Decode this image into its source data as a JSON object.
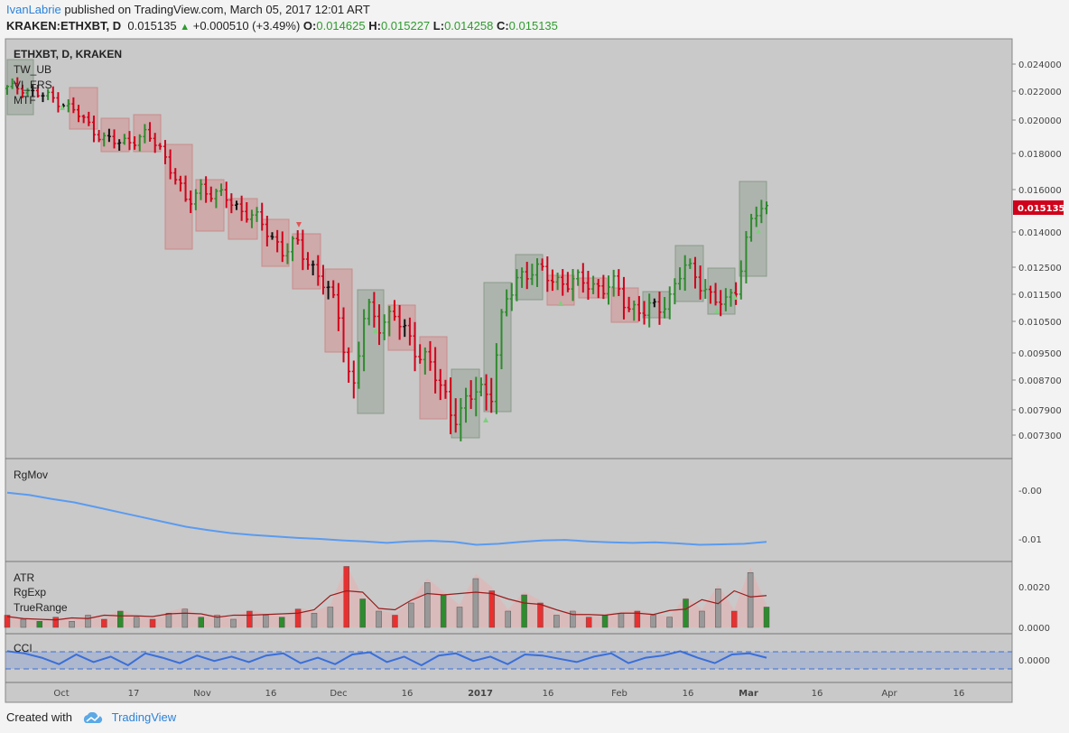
{
  "header": {
    "author": "IvanLabrie",
    "published_text": "published on TradingView.com, March 05, 2017 12:01 ART",
    "symbol": "KRAKEN:ETHXBT, D",
    "last": "0.015135",
    "change_arrow": "▲",
    "change": "+0.000510 (+3.49%)",
    "o_label": "O:",
    "o_value": "0.014625",
    "h_label": "H:",
    "h_value": "0.015227",
    "l_label": "L:",
    "l_value": "0.014258",
    "c_label": "C:",
    "c_value": "0.015135"
  },
  "footer": {
    "created_with": "Created with",
    "brand": "TradingView"
  },
  "colors": {
    "up": "#2e8b2e",
    "down": "#d0021b",
    "neutral": "#111111",
    "box_down": "rgba(220,100,100,0.3)",
    "box_up": "rgba(90,120,90,0.25)",
    "line": "#5b9bef",
    "price_tag": "#d0021b",
    "atr_line": "#9b1c1c",
    "cci_band": "rgba(90,130,220,0.25)"
  },
  "chart_data": [
    {
      "type": "candlestick",
      "title": "ETHXBT, D, KRAKEN",
      "indicators": [
        "TW_UB",
        "VI_ERS",
        "MTF"
      ],
      "x_tick_labels": [
        "Oct",
        "17",
        "Nov",
        "16",
        "Dec",
        "16",
        "2017",
        "16",
        "Feb",
        "16",
        "Mar",
        "16",
        "Apr",
        "16"
      ],
      "y_tick_labels": [
        "0.024000",
        "0.022000",
        "0.020000",
        "0.018000",
        "0.016000",
        "0.014000",
        "0.012500",
        "0.011500",
        "0.010500",
        "0.009500",
        "0.008700",
        "0.007900",
        "0.007300"
      ],
      "last_price_label": "0.015135",
      "series": [
        {
          "values": [
            0.0222,
            0.0223,
            0.0218,
            0.0216,
            0.0212,
            0.0205,
            0.0196,
            0.0189,
            0.0186,
            0.0188,
            0.0191,
            0.0184,
            0.017,
            0.0152,
            0.0162,
            0.0157,
            0.0156,
            0.015,
            0.0146,
            0.014,
            0.0131,
            0.0135,
            0.0126,
            0.0118,
            0.0108,
            0.0082,
            0.011,
            0.0105,
            0.0107,
            0.01,
            0.0095,
            0.0088,
            0.008,
            0.0078,
            0.0085,
            0.0083,
            0.011,
            0.0122,
            0.0124,
            0.0122,
            0.012,
            0.0119,
            0.012,
            0.0117,
            0.0118,
            0.0111,
            0.0108,
            0.011,
            0.0114,
            0.0125,
            0.0122,
            0.0113,
            0.0111,
            0.0121,
            0.0148,
            0.0151
          ]
        }
      ]
    },
    {
      "type": "line",
      "title": "RgMov",
      "y_tick_labels": [
        "-0.00",
        "-0.01"
      ],
      "series": [
        {
          "values": [
            -0.0005,
            -0.001,
            -0.0018,
            -0.0025,
            -0.0035,
            -0.0045,
            -0.0055,
            -0.0065,
            -0.0075,
            -0.0082,
            -0.0088,
            -0.0092,
            -0.0095,
            -0.0098,
            -0.01,
            -0.0103,
            -0.0105,
            -0.0108,
            -0.0105,
            -0.0104,
            -0.0106,
            -0.0112,
            -0.011,
            -0.0106,
            -0.0103,
            -0.0102,
            -0.0105,
            -0.0107,
            -0.0108,
            -0.0107,
            -0.0109,
            -0.0112,
            -0.0111,
            -0.011,
            -0.0106
          ]
        }
      ]
    },
    {
      "type": "bar",
      "title": "ATR",
      "legend": [
        "ATR",
        "RgExp",
        "TrueRange"
      ],
      "y_tick_labels": [
        "0.0020",
        "0.0000"
      ],
      "series": [
        {
          "values": [
            0.0006,
            0.0004,
            0.0003,
            0.0005,
            0.0003,
            0.0006,
            0.0004,
            0.0008,
            0.0005,
            0.0004,
            0.0007,
            0.0009,
            0.0005,
            0.0006,
            0.0004,
            0.0008,
            0.0006,
            0.0005,
            0.0009,
            0.0007,
            0.001,
            0.003,
            0.0014,
            0.0008,
            0.0006,
            0.0012,
            0.0022,
            0.0016,
            0.001,
            0.0024,
            0.0018,
            0.0008,
            0.0016,
            0.0012,
            0.0006,
            0.0008,
            0.0005,
            0.0006,
            0.0007,
            0.0008,
            0.0006,
            0.0005,
            0.0014,
            0.0008,
            0.0019,
            0.0008,
            0.0027,
            0.001
          ]
        }
      ]
    },
    {
      "type": "line",
      "title": "CCI",
      "y_tick_labels": [
        "0.0000"
      ],
      "series": [
        {
          "values": [
            80,
            60,
            20,
            -40,
            50,
            -20,
            30,
            -50,
            60,
            20,
            -30,
            40,
            -10,
            30,
            -20,
            40,
            60,
            -30,
            20,
            -40,
            50,
            70,
            -20,
            30,
            -50,
            40,
            60,
            -10,
            30,
            -40,
            50,
            40,
            10,
            -20,
            30,
            60,
            -30,
            20,
            40,
            80,
            20,
            -30,
            50,
            60,
            20
          ]
        }
      ]
    }
  ]
}
